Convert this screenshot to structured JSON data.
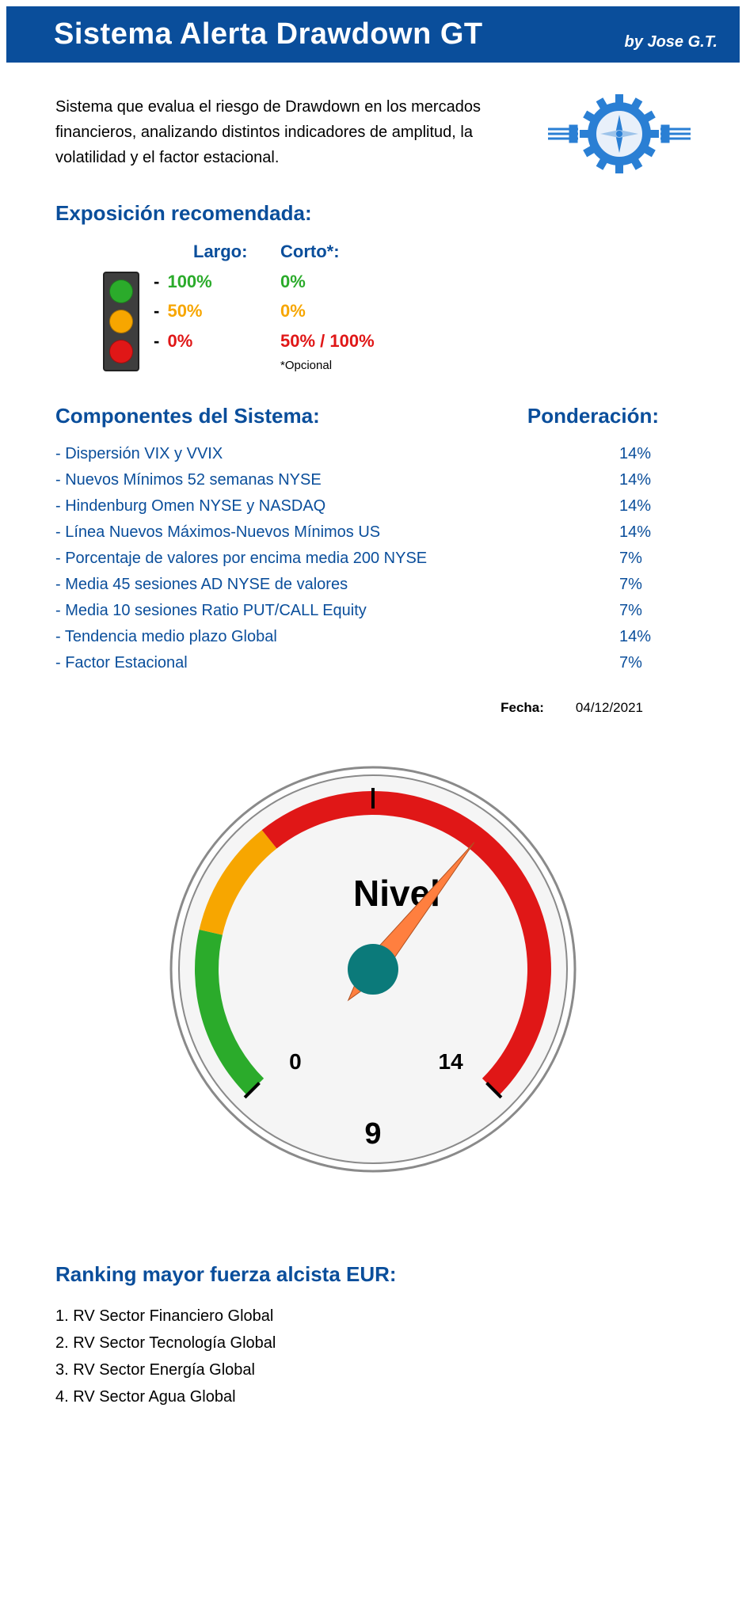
{
  "banner": {
    "title": "Sistema Alerta Drawdown GT",
    "author": "by Jose G.T.",
    "bg_color": "#0a4e9b",
    "text_color": "#ffffff"
  },
  "intro": "Sistema que evalua el riesgo de Drawdown en los mercados financieros, analizando distintos indicadores de amplitud, la volatilidad y el factor estacional.",
  "gear_color": "#2a7fd4",
  "sections": {
    "exposure_title": "Exposición recomendada:",
    "components_title": "Componentes del Sistema:",
    "weight_title": "Ponderación:",
    "ranking_title": "Ranking mayor fuerza alcista EUR:"
  },
  "exposure": {
    "header_long": "Largo:",
    "header_short": "Corto*:",
    "footnote": "*Opcional",
    "rows": [
      {
        "light": "#2bab2b",
        "long": "100%",
        "short": "0%",
        "color": "#2bab2b"
      },
      {
        "light": "#f7a600",
        "long": "50%",
        "short": "0%",
        "color": "#f7a600"
      },
      {
        "light": "#e01717",
        "long": "0%",
        "short": "50% / 100%",
        "color": "#e01717"
      }
    ]
  },
  "components": [
    {
      "name": "Dispersión VIX y VVIX",
      "weight": "14%"
    },
    {
      "name": "Nuevos Mínimos 52 semanas NYSE",
      "weight": "14%"
    },
    {
      "name": "Hindenburg Omen NYSE y NASDAQ",
      "weight": "14%"
    },
    {
      "name": "Línea Nuevos Máximos-Nuevos Mínimos US",
      "weight": "14%"
    },
    {
      "name": "Porcentaje de valores por encima media 200 NYSE",
      "weight": "7%"
    },
    {
      "name": "Media 45 sesiones AD NYSE de valores",
      "weight": "7%"
    },
    {
      "name": "Media 10 sesiones Ratio PUT/CALL Equity",
      "weight": "7%"
    },
    {
      "name": "Tendencia medio plazo Global",
      "weight": "14%"
    },
    {
      "name": "Factor Estacional",
      "weight": "7%"
    }
  ],
  "date": {
    "label": "Fecha:",
    "value": "04/12/2021"
  },
  "gauge": {
    "title": "Nivel",
    "min_label": "0",
    "max_label": "14",
    "value_label": "9",
    "value": 9,
    "min": 0,
    "max": 14,
    "start_angle": -225,
    "end_angle": 45,
    "segments": {
      "green": {
        "from": 0,
        "to": 3,
        "color": "#2bab2b"
      },
      "orange": {
        "from": 3,
        "to": 5,
        "color": "#f7a600"
      },
      "red": {
        "from": 5,
        "to": 14,
        "color": "#e01717"
      }
    },
    "face_color": "#f5f5f5",
    "rim_color": "#8a8a8a",
    "needle_color": "#ff7f3f",
    "hub_color": "#0b7a7a",
    "tick_color": "#000000",
    "title_fontsize": 46,
    "label_fontsize": 28,
    "value_fontsize": 38
  },
  "ranking": [
    "1. RV Sector Financiero Global",
    "2. RV Sector Tecnología Global",
    "3. RV Sector Energía Global",
    "4. RV Sector Agua Global"
  ],
  "colors": {
    "primary": "#0a4e9b",
    "text": "#000000"
  }
}
